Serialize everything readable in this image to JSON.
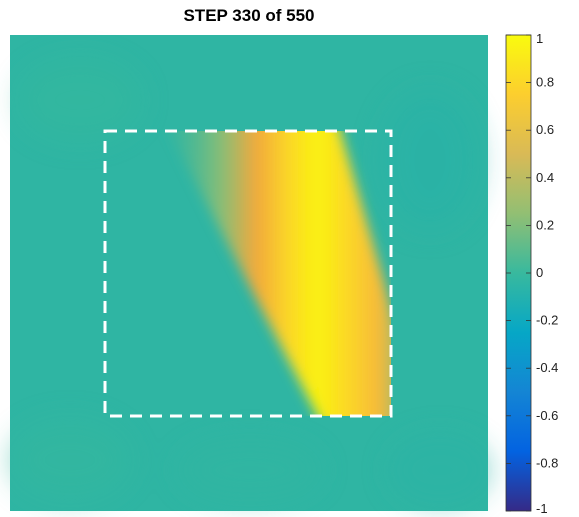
{
  "chart_data": {
    "type": "heatmap",
    "title": "STEP 330 of 550",
    "xlabel": "",
    "ylabel": "",
    "grid": false,
    "axes_visible": false,
    "colormap": "parula",
    "colorbar": {
      "position": "right",
      "range": [
        -1,
        1
      ],
      "ticks": [
        1,
        0.8,
        0.6,
        0.4,
        0.2,
        0,
        -0.2,
        -0.4,
        -0.6,
        -0.8,
        -1
      ],
      "tick_labels": [
        "1",
        "0.8",
        "0.6",
        "0.4",
        "0.2",
        "0",
        "-0.2",
        "-0.4",
        "-0.6",
        "-0.8",
        "-1"
      ]
    },
    "background_value": 0.03,
    "annotations": [
      {
        "type": "dashed-rectangle",
        "color": "#ffffff"
      }
    ],
    "field_feature": "diagonal band of peak value 1 inside the dashed region, running from the upper edge down to the lower-right corner"
  }
}
